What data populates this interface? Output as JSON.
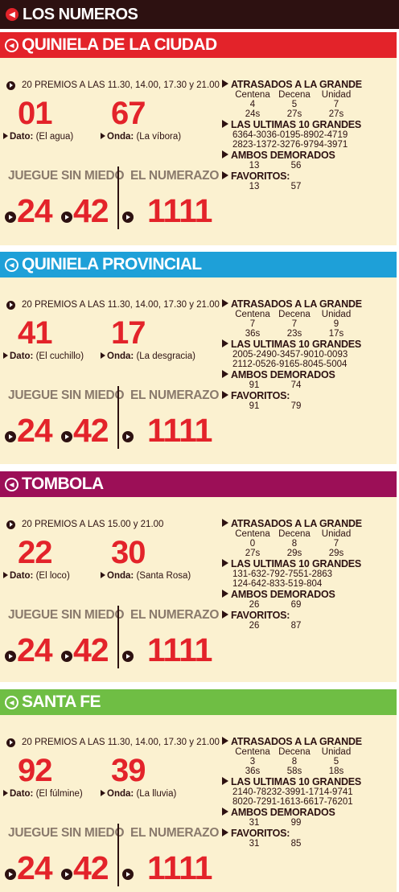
{
  "top_title": "LOS NUMEROS",
  "colors": {
    "topbar": "#2d1111",
    "ciudad": "#e3232a",
    "provincial": "#1ea0d8",
    "tombola": "#9c0f57",
    "santafe": "#6fbe44",
    "accent": "#e3232a",
    "bg": "#fbf1d0"
  },
  "sections": [
    {
      "title": "QUINIELA DE LA CIUDAD",
      "premios": "20 PREMIOS A LAS 11.30, 14.00, 17.30 y 21.00",
      "dato_num": "01",
      "dato_label": "Dato:",
      "dato_text": "(El agua)",
      "onda_num": "67",
      "onda_label": "Onda:",
      "onda_text": "(La víbora)",
      "juegue_label": "JUEGUE SIN MIEDO",
      "juegue_1": "24",
      "juegue_2": "42",
      "numerazo_label": "EL NUMERAZO",
      "numerazo": "1111",
      "atrasados_label": "ATRASADOS A LA GRANDE",
      "cols": [
        "Centena",
        "Decena",
        "Unidad"
      ],
      "atr_vals": [
        "4",
        "5",
        "7"
      ],
      "atr_s": [
        "24s",
        "27s",
        "27s"
      ],
      "ultimas_label": "LAS ULTIMAS 10 GRANDES",
      "ultimas_1": "6364-3036-0195-8902-4719",
      "ultimas_2": "2823-1372-3276-9794-3971",
      "ambos_label": "AMBOS DEMORADOS",
      "ambos": [
        "13",
        "56"
      ],
      "fav_label": "FAVORITOS:",
      "fav": [
        "13",
        "57"
      ]
    },
    {
      "title": "QUINIELA PROVINCIAL",
      "premios": "20 PREMIOS A LAS 11.30, 14.00, 17.30 y 21.00",
      "dato_num": "41",
      "dato_label": "Dato:",
      "dato_text": "(El cuchillo)",
      "onda_num": "17",
      "onda_label": "Onda:",
      "onda_text": "(La desgracia)",
      "juegue_label": "JUEGUE SIN MIEDO",
      "juegue_1": "24",
      "juegue_2": "42",
      "numerazo_label": "EL NUMERAZO",
      "numerazo": "1111",
      "atrasados_label": "ATRASADOS A LA GRANDE",
      "cols": [
        "Centena",
        "Decena",
        "Unidad"
      ],
      "atr_vals": [
        "7",
        "7",
        "9"
      ],
      "atr_s": [
        "36s",
        "23s",
        "17s"
      ],
      "ultimas_label": "LAS ULTIMAS 10 GRANDES",
      "ultimas_1": "2005-2490-3457-9010-0093",
      "ultimas_2": "2112-0526-9165-8045-5004",
      "ambos_label": "AMBOS DEMORADOS",
      "ambos": [
        "91",
        "74"
      ],
      "fav_label": "FAVORITOS:",
      "fav": [
        "91",
        "79"
      ]
    },
    {
      "title": "TOMBOLA",
      "premios": "20 PREMIOS A LAS 15.00 y 21.00",
      "dato_num": "22",
      "dato_label": "Dato:",
      "dato_text": "(El loco)",
      "onda_num": "30",
      "onda_label": "Onda:",
      "onda_text": "(Santa Rosa)",
      "juegue_label": "JUEGUE SIN MIEDO",
      "juegue_1": "24",
      "juegue_2": "42",
      "numerazo_label": "EL NUMERAZO",
      "numerazo": "1111",
      "atrasados_label": "ATRASADOS A LA GRANDE",
      "cols": [
        "Centena",
        "Decena",
        "Unidad"
      ],
      "atr_vals": [
        "0",
        "8",
        "7"
      ],
      "atr_s": [
        "27s",
        "29s",
        "29s"
      ],
      "ultimas_label": "LAS ULTIMAS 10 GRANDES",
      "ultimas_1": "131-632-792-7551-2863",
      "ultimas_2": "124-642-833-519-804",
      "ambos_label": "AMBOS DEMORADOS",
      "ambos": [
        "26",
        "69"
      ],
      "fav_label": "FAVORITOS:",
      "fav": [
        "26",
        "87"
      ]
    },
    {
      "title": "SANTA FE",
      "premios": "20 PREMIOS A LAS 11.30, 14.00, 17.30 y 21.00",
      "dato_num": "92",
      "dato_label": "Dato:",
      "dato_text": "(El fúlmine)",
      "onda_num": "39",
      "onda_label": "Onda:",
      "onda_text": "(La lluvia)",
      "juegue_label": "JUEGUE SIN MIEDO",
      "juegue_1": "24",
      "juegue_2": "42",
      "numerazo_label": "EL NUMERAZO",
      "numerazo": "1111",
      "atrasados_label": "ATRASADOS A LA GRANDE",
      "cols": [
        "Centena",
        "Decena",
        "Unidad"
      ],
      "atr_vals": [
        "3",
        "8",
        "5"
      ],
      "atr_s": [
        "36s",
        "58s",
        "18s"
      ],
      "ultimas_label": "LAS ULTIMAS 10 GRANDES",
      "ultimas_1": "2140-78232-3991-1714-9741",
      "ultimas_2": "8020-7291-1613-6617-76201",
      "ambos_label": "AMBOS DEMORADOS",
      "ambos": [
        "31",
        "99"
      ],
      "fav_label": "FAVORITOS:",
      "fav": [
        "31",
        "85"
      ]
    }
  ]
}
